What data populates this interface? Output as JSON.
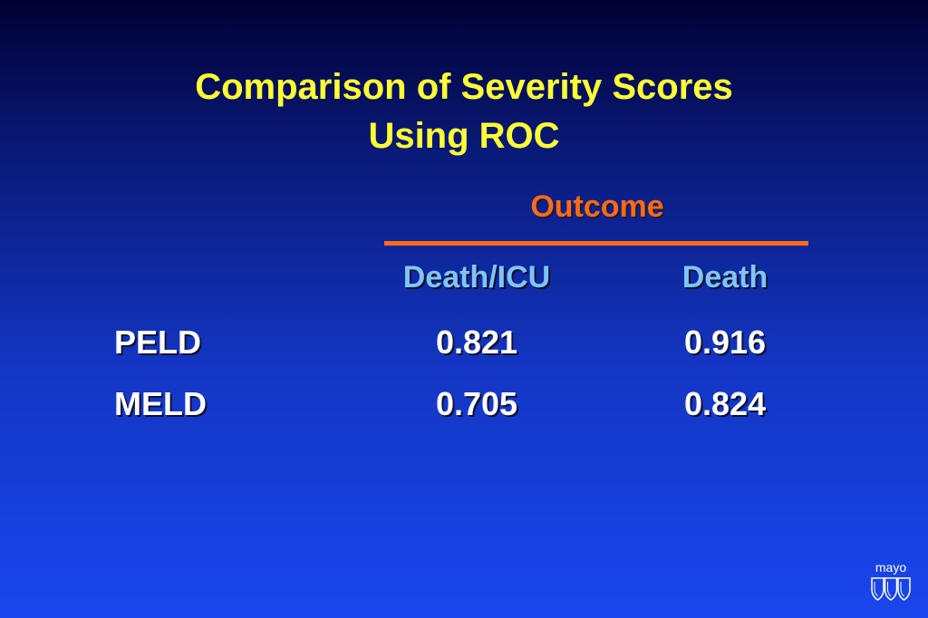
{
  "slide": {
    "title_line1": "Comparison of Severity Scores",
    "title_line2": "Using ROC"
  },
  "table": {
    "group_header": "Outcome",
    "columns": [
      "Death/ICU",
      "Death"
    ],
    "rows": [
      {
        "label": "PELD",
        "values": [
          "0.821",
          "0.916"
        ]
      },
      {
        "label": "MELD",
        "values": [
          "0.705",
          "0.824"
        ]
      }
    ]
  },
  "logo": {
    "text": "mayo",
    "icon": "mayo-shields-icon"
  },
  "colors": {
    "title": "#ffff33",
    "outcome": "#ff6a14",
    "column_header": "#7fc4f2",
    "body_text": "#ffffff",
    "background_top": "#000033",
    "background_bottom": "#1a46ee"
  }
}
